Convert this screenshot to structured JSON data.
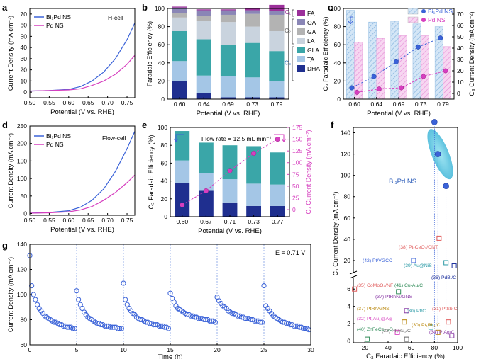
{
  "figure": {
    "panel_labels": [
      "a",
      "b",
      "c",
      "d",
      "e",
      "f",
      "g"
    ]
  },
  "colors": {
    "blue": "#3a62d8",
    "magenta": "#d63fbf",
    "navy": "#1b2f9c",
    "teal": "#3aa6a8",
    "lightblue": "#a4c6e6",
    "gray": "#b3b3b3",
    "purple": "#8a86b6",
    "fa": "#9b2f9a",
    "dhaDark": "#1f2f8f"
  },
  "chart_data": [
    {
      "id": "a",
      "type": "line",
      "xlabel": "Potential (V vs. RHE)",
      "ylabel": "Current Density (mA cm⁻²)",
      "xlim": [
        0.5,
        0.77
      ],
      "ylim": [
        -5,
        75
      ],
      "xticks": [
        "0.50",
        "0.55",
        "0.60",
        "0.65",
        "0.70",
        "0.75"
      ],
      "yticks": [
        "0",
        "10",
        "20",
        "30",
        "40",
        "50",
        "60",
        "70"
      ],
      "annotation": "H-cell",
      "series": [
        {
          "name": "Bi₁Pd NS",
          "color": "blue",
          "x": [
            0.5,
            0.55,
            0.6,
            0.63,
            0.66,
            0.69,
            0.72,
            0.75,
            0.77
          ],
          "y": [
            1,
            1.5,
            2.5,
            5,
            10,
            18,
            30,
            47,
            62
          ]
        },
        {
          "name": "Pd NS",
          "color": "magenta",
          "x": [
            0.5,
            0.55,
            0.6,
            0.63,
            0.66,
            0.69,
            0.72,
            0.75,
            0.77
          ],
          "y": [
            1,
            1.5,
            2,
            3,
            6,
            10,
            16,
            25,
            33
          ]
        }
      ]
    },
    {
      "id": "b",
      "type": "bar",
      "stacked": true,
      "xlabel": "Potential (V vs. RHE)",
      "ylabel": "Faradaic Efficiency (%)",
      "categories": [
        "0.60",
        "0.64",
        "0.69",
        "0.73",
        "0.79"
      ],
      "ylim": [
        0,
        100
      ],
      "yticks": [
        "0",
        "20",
        "40",
        "60",
        "80",
        "100"
      ],
      "legend": [
        "FA",
        "OA",
        "GA",
        "LA",
        "GLA",
        "TA",
        "DHA"
      ],
      "bracket_labels": [
        "C₁",
        "C₂",
        "C₃"
      ],
      "series": [
        {
          "name": "DHA",
          "values": [
            20,
            7,
            2,
            2,
            2
          ]
        },
        {
          "name": "TA",
          "values": [
            22,
            19,
            23,
            22,
            18
          ]
        },
        {
          "name": "GLA",
          "values": [
            33,
            40,
            35,
            38,
            33
          ]
        },
        {
          "name": "LA",
          "values": [
            15,
            20,
            25,
            18,
            22
          ]
        },
        {
          "name": "GA",
          "values": [
            5,
            6,
            8,
            14,
            18
          ]
        },
        {
          "name": "OA",
          "values": [
            6,
            6,
            5,
            4,
            4
          ]
        },
        {
          "name": "FA",
          "values": [
            1,
            1,
            1,
            2,
            7
          ]
        }
      ]
    },
    {
      "id": "c",
      "type": "bar",
      "xlabel": "Potential (V vs. RHE)",
      "ylabel": "C₃ Faradaic Efficiency (%)",
      "ylabel2": "C₃ Current Density (mA cm⁻²)",
      "categories": [
        "0.60",
        "0.64",
        "0.69",
        "0.73",
        "0.79"
      ],
      "ylim": [
        0,
        100
      ],
      "y2lim": [
        -5,
        75
      ],
      "yticks": [
        "0",
        "20",
        "40",
        "60",
        "80",
        "100"
      ],
      "y2ticks": [
        "0",
        "10",
        "20",
        "30",
        "40",
        "50",
        "60",
        "70"
      ],
      "series": [
        {
          "name": "Bi₁Pd NS",
          "fe": [
            98,
            85,
            86,
            83,
            80
          ],
          "cd": [
            5,
            15,
            28,
            41,
            49
          ]
        },
        {
          "name": "Pd NS",
          "fe": [
            63,
            67,
            70,
            70,
            58
          ],
          "cd": [
            1,
            4,
            5,
            15,
            20
          ]
        }
      ]
    },
    {
      "id": "d",
      "type": "line",
      "xlabel": "Potential (V vs. RHE)",
      "ylabel": "Current Density (mA cm⁻²)",
      "xlim": [
        0.5,
        0.77
      ],
      "ylim": [
        -5,
        250
      ],
      "xticks": [
        "0.50",
        "0.55",
        "0.60",
        "0.65",
        "0.70",
        "0.75"
      ],
      "yticks": [
        "0",
        "50",
        "100",
        "150",
        "200",
        "250"
      ],
      "annotation": "Flow-cell",
      "series": [
        {
          "name": "Bi₁Pd NS",
          "color": "blue",
          "x": [
            0.5,
            0.55,
            0.6,
            0.63,
            0.66,
            0.69,
            0.72,
            0.75,
            0.77
          ],
          "y": [
            1,
            3,
            8,
            18,
            38,
            70,
            120,
            185,
            235
          ]
        },
        {
          "name": "Pd NS",
          "color": "magenta",
          "x": [
            0.5,
            0.55,
            0.6,
            0.63,
            0.66,
            0.69,
            0.72,
            0.75,
            0.77
          ],
          "y": [
            1,
            2,
            5,
            10,
            20,
            38,
            60,
            88,
            110
          ]
        }
      ]
    },
    {
      "id": "e",
      "type": "bar",
      "stacked": true,
      "xlabel": "Potential (V vs. RHE)",
      "ylabel": "C₃ Faradaic Efficiency (%)",
      "ylabel2": "C₃ Current Density (mA cm⁻²)",
      "categories": [
        "0.60",
        "0.67",
        "0.71",
        "0.73",
        "0.77"
      ],
      "ylim": [
        0,
        100
      ],
      "y2lim": [
        -15,
        175
      ],
      "yticks": [
        "0",
        "20",
        "40",
        "60",
        "80",
        "100"
      ],
      "y2ticks": [
        "0",
        "25",
        "50",
        "75",
        "100",
        "125",
        "150",
        "175"
      ],
      "annotation": "Flow rate = 12.5 mL min⁻¹",
      "series": [
        {
          "name": "DHA",
          "values": [
            38,
            29,
            16,
            12,
            12
          ]
        },
        {
          "name": "TA",
          "values": [
            25,
            20,
            26,
            25,
            24
          ]
        },
        {
          "name": "GLA",
          "values": [
            33,
            34,
            38,
            42,
            36
          ]
        }
      ],
      "current_density": [
        10,
        40,
        83,
        120,
        150
      ]
    },
    {
      "id": "f",
      "type": "scatter",
      "xlabel": "C₃ Faradaic Efficiency (%)",
      "ylabel": "C₃ Current Density (mA cm⁻²)",
      "xlim": [
        10,
        100
      ],
      "xticks": [
        "20",
        "40",
        "60",
        "80",
        "100"
      ],
      "yticks_upper": [
        "20",
        "40",
        "60",
        "80",
        "100",
        "120",
        "140"
      ],
      "yticks_lower": [
        "0",
        "2",
        "4",
        "6"
      ],
      "highlight_label": "Bi₁Pd NS",
      "highlight": [
        {
          "fe": 80,
          "cd": 150
        },
        {
          "fe": 83,
          "cd": 120
        },
        {
          "fe": 90,
          "cd": 90
        }
      ],
      "refs": [
        {
          "label": "(42) Pt/VGCC",
          "fe": 62,
          "cd": 20,
          "color": "#3a62d8"
        },
        {
          "label": "(38) Pt-CeO₂/CNT",
          "fe": 84,
          "cd": 41,
          "color": "#e05a5a"
        },
        {
          "label": "(39) Au@NiS",
          "fe": 90,
          "cd": 18,
          "color": "#2b9aa6"
        },
        {
          "label": "(36) PdBi/C",
          "fe": 97,
          "cd": 15,
          "color": "#1b2f9c"
        },
        {
          "label": "(35) CoMoO₄/NF",
          "fe": 11,
          "cd": 6,
          "color": "#e05a5a"
        },
        {
          "label": "(41) Cu-Au/C",
          "fe": 49,
          "cd": 5.7,
          "color": "#2e8b57"
        },
        {
          "label": "(37) PtRhNi/GNS",
          "fe": 56,
          "cd": 3.5,
          "color": "#8a3aa6"
        },
        {
          "label": "(37) PtRh/GNS",
          "fe": 54,
          "cd": 2.2,
          "color": "#b8860b"
        },
        {
          "label": "(31) PtSbIC",
          "fe": 92,
          "cd": 2.2,
          "color": "#e05a5a"
        },
        {
          "label": "(30) Pt/C",
          "fe": 77,
          "cd": 1.6,
          "color": "#2b9aa6"
        },
        {
          "label": "(32) Pt₁Au₂@Ag",
          "fe": 48,
          "cd": 1.0,
          "color": "#d63fbf"
        },
        {
          "label": "(30) Pt₁Rh₁/C",
          "fe": 83,
          "cd": 1.0,
          "color": "#b8860b"
        },
        {
          "label": "(40) ZnFeCo₂-ₓO₄",
          "fe": 22,
          "cd": 0.2,
          "color": "#2e8b57"
        },
        {
          "label": "(33) Pt₃Ru₁/C",
          "fe": 56,
          "cd": 0.2,
          "color": "#666666"
        },
        {
          "label": "(34) PtAg/C",
          "fe": 95,
          "cd": 0.6,
          "color": "#8a3aa6"
        }
      ]
    },
    {
      "id": "g",
      "type": "scatter",
      "xlabel": "Time (h)",
      "ylabel": "Current Density (mA cm⁻²)",
      "xlim": [
        0,
        30
      ],
      "ylim": [
        60,
        140
      ],
      "xticks": [
        "0",
        "5",
        "10",
        "15",
        "20",
        "25",
        "30"
      ],
      "yticks": [
        "60",
        "80",
        "100",
        "120",
        "140"
      ],
      "annotation": "E = 0.71 V",
      "cycles": [
        {
          "start": 0,
          "values": [
            131,
            107,
            100,
            96,
            92,
            89,
            87,
            85,
            83,
            82,
            81,
            80,
            79,
            78,
            78,
            77,
            76,
            76,
            75,
            75,
            74,
            74,
            74,
            73,
            73
          ]
        },
        {
          "start": 5,
          "values": [
            103,
            96,
            92,
            89,
            86,
            84,
            82,
            81,
            80,
            79,
            78,
            77,
            77,
            76,
            76,
            75,
            75,
            75,
            74,
            74,
            74,
            74,
            73,
            73,
            73
          ]
        },
        {
          "start": 10,
          "values": [
            109,
            96,
            92,
            89,
            87,
            85,
            84,
            82,
            81,
            80,
            80,
            79,
            78,
            78,
            77,
            77,
            76,
            76,
            76,
            75,
            75,
            75,
            74,
            74,
            73
          ]
        },
        {
          "start": 15,
          "values": [
            101,
            97,
            94,
            91,
            89,
            88,
            87,
            86,
            85,
            84,
            84,
            83,
            83,
            82,
            82,
            81,
            81,
            81,
            80,
            80,
            80,
            79,
            79,
            79,
            78
          ]
        },
        {
          "start": 20,
          "values": [
            98,
            95,
            93,
            91,
            90,
            89,
            87,
            86,
            85,
            85,
            84,
            83,
            83,
            82,
            82,
            81,
            81,
            81,
            80,
            80,
            79,
            79,
            79,
            78,
            78
          ]
        },
        {
          "start": 25,
          "values": [
            107,
            91,
            89,
            87,
            85,
            83,
            82,
            81,
            80,
            79,
            78,
            78,
            77,
            77,
            76,
            76,
            75,
            75,
            75,
            74,
            74,
            73,
            73,
            73,
            72
          ]
        }
      ]
    }
  ]
}
